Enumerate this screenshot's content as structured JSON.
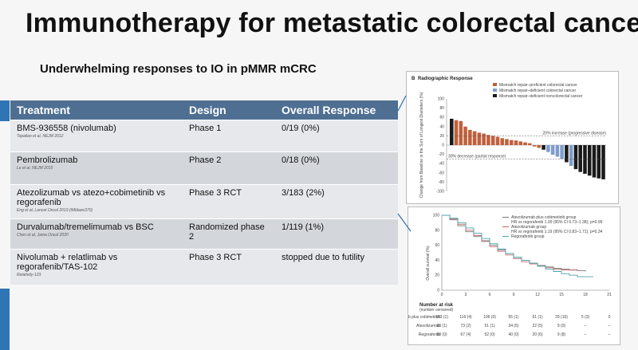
{
  "slide": {
    "title": "Immunotherapy for metastatic colorectal cancer",
    "subtitle": "Underwhelming responses to IO in pMMR mCRC"
  },
  "table": {
    "headers": [
      "Treatment",
      "Design",
      "Overall Response"
    ],
    "rows": [
      {
        "treatment": "BMS-936558 (nivolumab)",
        "citation": "Topalian et al, NEJM 2012",
        "design": "Phase 1",
        "response": "0/19 (0%)"
      },
      {
        "treatment": "Pembrolizumab",
        "citation": "Le et al, NEJM 2015",
        "design": "Phase 2",
        "response": "0/18 (0%)"
      },
      {
        "treatment": "Atezolizumab vs atezo+cobimetinib vs regorafenib",
        "citation": "Eng et al, Lancet Oncol 2019 (IMblaze370)",
        "design": "Phase 3 RCT",
        "response": "3/183 (2%)"
      },
      {
        "treatment": "Durvalumab/tremelimumab vs BSC",
        "citation": "Chen et al, Jama Oncol 2020",
        "design": "Randomized phase 2",
        "response": "1/119 (1%)"
      },
      {
        "treatment": "Nivolumab + relatlimab vs regorafenib/TAS-102",
        "citation": "Relativity-123",
        "design": "Phase 3 RCT",
        "response": "stopped due to futility"
      }
    ]
  },
  "waterfall": {
    "panel_label": "B",
    "panel_title": "Radiographic Response",
    "y_axis_label": "Change from Baseline in the Sum of Longest Diameters (%)",
    "y_ticks": [
      "100",
      "80",
      "60",
      "40",
      "20",
      "0",
      "-20",
      "-40",
      "-60",
      "-80",
      "-100"
    ],
    "legend": [
      {
        "label": "Mismatch repair–proficient colorectal cancer",
        "color": "#c0603c"
      },
      {
        "label": "Mismatch repair–deficient colorectal cancer",
        "color": "#7f9dcc"
      },
      {
        "label": "Mismatch repair–deficient noncolorectal cancer",
        "color": "#1a1a1a"
      }
    ],
    "annotation_increase": "20% increase (progressive disease)",
    "annotation_decrease": "30% decrease (partial response)"
  },
  "chart_data": {
    "type": "bar",
    "y_axis_label": "Change from Baseline in the Sum of Longest Diameters (%)",
    "ylim": [
      -100,
      100
    ],
    "bars": [
      {
        "value": 57,
        "group": 2
      },
      {
        "value": 54,
        "group": 0
      },
      {
        "value": 52,
        "group": 0
      },
      {
        "value": 40,
        "group": 0
      },
      {
        "value": 33,
        "group": 0
      },
      {
        "value": 30,
        "group": 0
      },
      {
        "value": 27,
        "group": 0
      },
      {
        "value": 25,
        "group": 0
      },
      {
        "value": 22,
        "group": 0
      },
      {
        "value": 20,
        "group": 0
      },
      {
        "value": 18,
        "group": 0
      },
      {
        "value": 15,
        "group": 0
      },
      {
        "value": 13,
        "group": 0
      },
      {
        "value": 11,
        "group": 0
      },
      {
        "value": 10,
        "group": 0
      },
      {
        "value": 8,
        "group": 0
      },
      {
        "value": 6,
        "group": 0
      },
      {
        "value": 4,
        "group": 0
      },
      {
        "value": -3,
        "group": 0
      },
      {
        "value": -6,
        "group": 0
      },
      {
        "value": -10,
        "group": 2
      },
      {
        "value": -15,
        "group": 1
      },
      {
        "value": -21,
        "group": 1
      },
      {
        "value": -25,
        "group": 1
      },
      {
        "value": -30,
        "group": 1
      },
      {
        "value": -37,
        "group": 2
      },
      {
        "value": -45,
        "group": 1
      },
      {
        "value": -52,
        "group": 2
      },
      {
        "value": -58,
        "group": 2
      },
      {
        "value": -62,
        "group": 2
      },
      {
        "value": -66,
        "group": 2
      },
      {
        "value": -70,
        "group": 2
      },
      {
        "value": -72,
        "group": 2
      },
      {
        "value": -74,
        "group": 2
      }
    ],
    "reference_lines": [
      20,
      -30
    ]
  },
  "km": {
    "legend": [
      {
        "label": "Atezolizumab plus cobimetinib group",
        "color": "#777777"
      },
      {
        "label": "HR vs regorafenib 1.00 (95% CI 0.73–1.38); p=0.99",
        "color": ""
      },
      {
        "label": "Atezolizumab group",
        "color": "#c46c6c"
      },
      {
        "label": "HR vs regorafenib 1.19 (95% CI 0.83–1.71); p=0.34",
        "color": ""
      },
      {
        "label": "Regorafenib group",
        "color": "#4aa5a8"
      }
    ],
    "y_axis_label": "Overall survival (%)",
    "y_ticks": [
      "100",
      "80",
      "60",
      "40",
      "20",
      "0"
    ],
    "x_ticks": [
      "0",
      "3",
      "6",
      "9",
      "12",
      "15",
      "18",
      "21"
    ],
    "risk_title": "Number at risk",
    "risk_subtitle": "(number censored)",
    "risk_rows": [
      {
        "label": "Atezolizumab plus cobimetinib",
        "values": [
          "183 (1)",
          "116 (4)",
          "106 (0)",
          "55 (1)",
          "61 (1)",
          "29 (16)",
          "5 (3)",
          "0"
        ]
      },
      {
        "label": "Atezolizumab",
        "values": [
          "90 (1)",
          "73 (2)",
          "51 (1)",
          "34 (6)",
          "22 (5)",
          "9 (9)",
          "–",
          "–"
        ]
      },
      {
        "label": "Regorafenib",
        "values": [
          "90 (0)",
          "67 (4)",
          "52 (0)",
          "40 (0)",
          "20 (6)",
          "9 (8)",
          "–",
          "–"
        ]
      }
    ],
    "series": [
      {
        "name": "Atezolizumab plus cobimetinib group",
        "color": "#777777",
        "points": [
          [
            0,
            100
          ],
          [
            1,
            94
          ],
          [
            2,
            86
          ],
          [
            3,
            78
          ],
          [
            4,
            72
          ],
          [
            5,
            66
          ],
          [
            6,
            60
          ],
          [
            7,
            54
          ],
          [
            8,
            49
          ],
          [
            9,
            44
          ],
          [
            10,
            40
          ],
          [
            11,
            36
          ],
          [
            12,
            33
          ],
          [
            13,
            31
          ],
          [
            14,
            29
          ],
          [
            15,
            28
          ],
          [
            16,
            27
          ],
          [
            17,
            26
          ],
          [
            18,
            25
          ]
        ]
      },
      {
        "name": "Atezolizumab group",
        "color": "#c46c6c",
        "points": [
          [
            0,
            100
          ],
          [
            1,
            95
          ],
          [
            2,
            88
          ],
          [
            3,
            80
          ],
          [
            4,
            73
          ],
          [
            5,
            65
          ],
          [
            6,
            58
          ],
          [
            7,
            52
          ],
          [
            8,
            47
          ],
          [
            9,
            42
          ],
          [
            10,
            38
          ],
          [
            11,
            35
          ],
          [
            12,
            32
          ],
          [
            13,
            30
          ],
          [
            14,
            28
          ],
          [
            15,
            27
          ],
          [
            16,
            27
          ],
          [
            17,
            27
          ]
        ]
      },
      {
        "name": "Regorafenib group",
        "color": "#4aa5a8",
        "points": [
          [
            0,
            100
          ],
          [
            1,
            96
          ],
          [
            2,
            90
          ],
          [
            3,
            83
          ],
          [
            4,
            76
          ],
          [
            5,
            69
          ],
          [
            6,
            62
          ],
          [
            7,
            55
          ],
          [
            8,
            49
          ],
          [
            9,
            44
          ],
          [
            10,
            40
          ],
          [
            11,
            36
          ],
          [
            12,
            32
          ],
          [
            13,
            28
          ],
          [
            14,
            25
          ],
          [
            15,
            22
          ],
          [
            16,
            20
          ],
          [
            17,
            18
          ],
          [
            18,
            18
          ],
          [
            19,
            18
          ]
        ]
      }
    ]
  }
}
